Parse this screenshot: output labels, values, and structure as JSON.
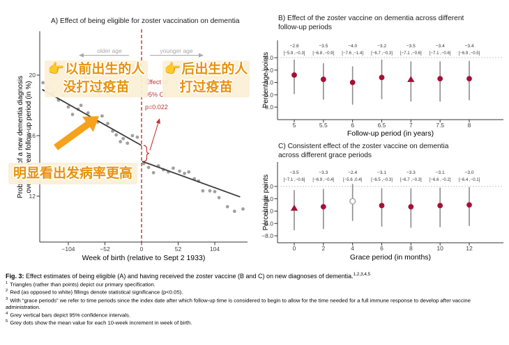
{
  "colors": {
    "crimson": "#a51136",
    "red": "#c2342e",
    "orange_text": "#e8920b",
    "orange_arrow": "#f6a21c",
    "annotation_bg": "#fbefd6",
    "gray_point": "#8f8f8f",
    "gray_ci": "#8c8c8c",
    "axis": "#333333",
    "tick_label": "#404040",
    "muted": "#a8a8a8",
    "zero_line": "#c8c8c8",
    "fit_line": "#3a3a3a"
  },
  "chart_data": [
    {
      "id": "A",
      "type": "scatter",
      "title": "A) Effect of being eligible for zoster vaccination on dementia",
      "xlabel": "Week of birth (relative to Sept 2 1933)",
      "ylabel_lines": [
        "Probability of a new dementia diagnosis",
        "over a 7-year follow-up period (in %)"
      ],
      "xlim": [
        -145,
        150
      ],
      "ylim": [
        9,
        22
      ],
      "x_ticks": [
        -104,
        -52,
        0,
        52,
        104
      ],
      "x_tick_labels": [
        "−104",
        "−52",
        "0",
        "52",
        "104"
      ],
      "y_ticks": [
        12,
        16,
        20
      ],
      "y_tick_labels": [
        "12",
        "16",
        "20"
      ],
      "cutoff_x": 0,
      "older_age_label": "older age",
      "younger_age_label": "younger age",
      "effect_annotation_lines": [
        "Effect of",
        "95% CI:",
        "p=0.022"
      ],
      "fit_left": [
        [
          -141,
          19.05
        ],
        [
          0,
          15.35
        ]
      ],
      "fit_right": [
        [
          1,
          14.3
        ],
        [
          140,
          11.95
        ]
      ],
      "points_left": [
        [
          -140,
          19.5
        ],
        [
          -133,
          19.15
        ],
        [
          -126,
          18.8
        ],
        [
          -118,
          18.35
        ],
        [
          -111,
          18.65
        ],
        [
          -104,
          17.9
        ],
        [
          -98,
          17.4
        ],
        [
          -90,
          17.75
        ],
        [
          -86,
          18.0
        ],
        [
          -76,
          17.5
        ],
        [
          -69,
          17.15
        ],
        [
          -62,
          16.9
        ],
        [
          -56,
          17.3
        ],
        [
          -48,
          16.8
        ],
        [
          -41,
          16.3
        ],
        [
          -36,
          16.05
        ],
        [
          -30,
          15.6
        ],
        [
          -26,
          15.8
        ],
        [
          -20,
          15.5
        ],
        [
          -13,
          16.0
        ],
        [
          -6,
          15.9
        ]
      ],
      "points_right": [
        [
          3,
          14.15
        ],
        [
          10,
          13.9
        ],
        [
          17,
          13.55
        ],
        [
          24,
          14.0
        ],
        [
          31,
          13.75
        ],
        [
          38,
          13.6
        ],
        [
          45,
          13.85
        ],
        [
          54,
          13.65
        ],
        [
          61,
          13.5
        ],
        [
          67,
          13.6
        ],
        [
          75,
          13.15
        ],
        [
          81,
          13.0
        ],
        [
          87,
          12.35
        ],
        [
          97,
          12.35
        ],
        [
          104,
          12.3
        ],
        [
          110,
          11.9
        ],
        [
          122,
          11.3
        ],
        [
          132,
          11.0
        ],
        [
          144,
          11.15
        ]
      ]
    },
    {
      "id": "B",
      "type": "errorbar",
      "title": "B) Effect of the zoster vaccine on dementia across different follow-up periods",
      "title_lines": [
        "B) Effect of the zoster vaccine on dementia across different",
        "follow-up periods"
      ],
      "xlabel": "Follow-up period (in years)",
      "ylabel": "Percentage points",
      "categories": [
        5,
        5.5,
        6,
        6.5,
        7,
        7.5,
        8
      ],
      "x_labels": [
        "5",
        "5.5",
        "6",
        "6.5",
        "7",
        "7.5",
        "8"
      ],
      "estimates": [
        -2.8,
        -3.5,
        -4.0,
        -3.2,
        -3.5,
        -3.4,
        -3.4
      ],
      "ci_low": [
        -5.9,
        -6.8,
        -7.6,
        -6.7,
        -7.1,
        -7.1,
        -6.9
      ],
      "ci_high": [
        -0.3,
        -0.9,
        -1.4,
        -0.3,
        -0.6,
        -0.6,
        -0.5
      ],
      "est_labels": [
        "−2.8",
        "−3.5",
        "−4.0",
        "−3.2",
        "−3.5",
        "−3.4",
        "−3.4"
      ],
      "ci_labels": [
        "[−5.9 ,−0.3]",
        "[−6.8 ,−0.9]",
        "[−7.6 ,−1.4]",
        "[−6.7 ,−0.3]",
        "[−7.1 ,−0.6]",
        "[−7.1 ,−0.6]",
        "[−6.9 ,−0.5]"
      ],
      "markers": [
        "circle",
        "circle",
        "circle",
        "circle",
        "triangle",
        "circle",
        "circle"
      ],
      "filled": [
        true,
        true,
        true,
        true,
        true,
        true,
        true
      ],
      "y_ticks": [
        0,
        -2,
        -4,
        -6,
        -8
      ],
      "y_tick_labels": [
        "0.0",
        "−2.0",
        "−4.0",
        "−6.0",
        "−8.0"
      ]
    },
    {
      "id": "C",
      "type": "errorbar",
      "title": "C) Consistent effect of the zoster vaccine on dementia across different grace periods",
      "title_lines": [
        "C) Consistent effect of the zoster vaccine on dementia",
        "across different grace periods"
      ],
      "xlabel": "Grace period (in months)",
      "ylabel": "Percentage points",
      "categories": [
        0,
        2,
        4,
        6,
        8,
        10,
        12
      ],
      "x_labels": [
        "0",
        "2",
        "4",
        "6",
        "8",
        "10",
        "12"
      ],
      "estimates": [
        -3.5,
        -3.3,
        -2.4,
        -3.1,
        -3.3,
        -3.1,
        -3.0
      ],
      "ci_low": [
        -7.1,
        -6.9,
        -5.6,
        -6.5,
        -6.7,
        -6.6,
        -6.4
      ],
      "ci_high": [
        -0.6,
        -0.4,
        0.4,
        -0.3,
        -0.3,
        -0.2,
        -0.1
      ],
      "est_labels": [
        "−3.5",
        "−3.3",
        "−2.4",
        "−3.1",
        "−3.3",
        "−3.1",
        "−3.0"
      ],
      "ci_labels": [
        "[−7.1 ,−0.6]",
        "[−6.9 ,−0.4]",
        "[−5.6 ,0.4]",
        "[−6.5 ,−0.3]",
        "[−6.7 ,−0.3]",
        "[−6.6 ,−0.2]",
        "[−6.4 ,−0.1]"
      ],
      "markers": [
        "triangle",
        "circle",
        "circle",
        "circle",
        "circle",
        "circle",
        "circle"
      ],
      "filled": [
        true,
        true,
        false,
        true,
        true,
        true,
        true
      ],
      "y_ticks": [
        0,
        -2,
        -4,
        -6,
        -8
      ],
      "y_tick_labels": [
        "0.0",
        "−2.0",
        "−4.0",
        "−6.0",
        "−8.0"
      ]
    }
  ],
  "overlay": {
    "pointer_emoji": "👉",
    "left_box": {
      "line1": "以前出生的人",
      "line2": "没打过疫苗"
    },
    "right_box": {
      "line1": "后出生的人",
      "line2": "打过疫苗"
    },
    "bottom_box": {
      "text": "明显看出发病率更高"
    }
  },
  "caption": {
    "label": "Fig. 3:",
    "text": " Effect estimates of being eligible (A) and having received the zoster vaccine (B and C) on new diagnoses of dementia.",
    "sup": "1,2,3,4,5",
    "footnotes": [
      {
        "sup": "1",
        "text": "Triangles (rather than points) depict our primary specification."
      },
      {
        "sup": "2",
        "text": "Red (as opposed to white) fillings denote statistical significance (p<0.05)."
      },
      {
        "sup": "3",
        "text": "With “grace periods” we refer to time periods since the index date after which follow-up time is considered to begin to allow for the time needed for a full immune response to develop after vaccine administration."
      },
      {
        "sup": "4",
        "text": "Grey vertical bars depict 95% confidence intervals."
      },
      {
        "sup": "5",
        "text": "Grey dots show the mean value for each 10-week increment in week of birth."
      }
    ]
  }
}
